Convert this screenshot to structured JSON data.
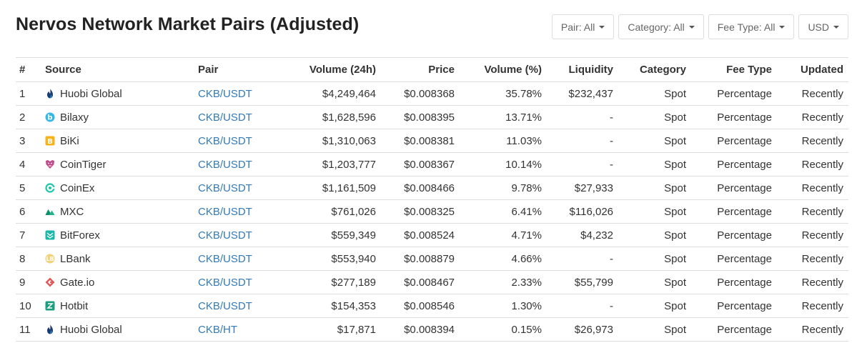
{
  "page": {
    "title": "Nervos Network Market Pairs (Adjusted)"
  },
  "filters": [
    {
      "label": "Pair: All"
    },
    {
      "label": "Category: All"
    },
    {
      "label": "Fee Type: All"
    },
    {
      "label": "USD"
    }
  ],
  "table": {
    "headers": {
      "rank": "#",
      "source": "Source",
      "pair": "Pair",
      "volume": "Volume (24h)",
      "price": "Price",
      "volume_pct": "Volume (%)",
      "liquidity": "Liquidity",
      "category": "Category",
      "fee_type": "Fee Type",
      "updated": "Updated"
    },
    "rows": [
      {
        "rank": "1",
        "source": "Huobi Global",
        "icon": "huobi-icon",
        "pair": "CKB/USDT",
        "volume": "$4,249,464",
        "price": "$0.008368",
        "volume_pct": "35.78%",
        "liquidity": "$232,437",
        "category": "Spot",
        "fee_type": "Percentage",
        "updated": "Recently"
      },
      {
        "rank": "2",
        "source": "Bilaxy",
        "icon": "bilaxy-icon",
        "pair": "CKB/USDT",
        "volume": "$1,628,596",
        "price": "$0.008395",
        "volume_pct": "13.71%",
        "liquidity": "-",
        "category": "Spot",
        "fee_type": "Percentage",
        "updated": "Recently"
      },
      {
        "rank": "3",
        "source": "BiKi",
        "icon": "biki-icon",
        "pair": "CKB/USDT",
        "volume": "$1,310,063",
        "price": "$0.008381",
        "volume_pct": "11.03%",
        "liquidity": "-",
        "category": "Spot",
        "fee_type": "Percentage",
        "updated": "Recently"
      },
      {
        "rank": "4",
        "source": "CoinTiger",
        "icon": "cointiger-icon",
        "pair": "CKB/USDT",
        "volume": "$1,203,777",
        "price": "$0.008367",
        "volume_pct": "10.14%",
        "liquidity": "-",
        "category": "Spot",
        "fee_type": "Percentage",
        "updated": "Recently"
      },
      {
        "rank": "5",
        "source": "CoinEx",
        "icon": "coinex-icon",
        "pair": "CKB/USDT",
        "volume": "$1,161,509",
        "price": "$0.008466",
        "volume_pct": "9.78%",
        "liquidity": "$27,933",
        "category": "Spot",
        "fee_type": "Percentage",
        "updated": "Recently"
      },
      {
        "rank": "6",
        "source": "MXC",
        "icon": "mxc-icon",
        "pair": "CKB/USDT",
        "volume": "$761,026",
        "price": "$0.008325",
        "volume_pct": "6.41%",
        "liquidity": "$116,026",
        "category": "Spot",
        "fee_type": "Percentage",
        "updated": "Recently"
      },
      {
        "rank": "7",
        "source": "BitForex",
        "icon": "bitforex-icon",
        "pair": "CKB/USDT",
        "volume": "$559,349",
        "price": "$0.008524",
        "volume_pct": "4.71%",
        "liquidity": "$4,232",
        "category": "Spot",
        "fee_type": "Percentage",
        "updated": "Recently"
      },
      {
        "rank": "8",
        "source": "LBank",
        "icon": "lbank-icon",
        "pair": "CKB/USDT",
        "volume": "$553,940",
        "price": "$0.008879",
        "volume_pct": "4.66%",
        "liquidity": "-",
        "category": "Spot",
        "fee_type": "Percentage",
        "updated": "Recently"
      },
      {
        "rank": "9",
        "source": "Gate.io",
        "icon": "gateio-icon",
        "pair": "CKB/USDT",
        "volume": "$277,189",
        "price": "$0.008467",
        "volume_pct": "2.33%",
        "liquidity": "$55,799",
        "category": "Spot",
        "fee_type": "Percentage",
        "updated": "Recently"
      },
      {
        "rank": "10",
        "source": "Hotbit",
        "icon": "hotbit-icon",
        "pair": "CKB/USDT",
        "volume": "$154,353",
        "price": "$0.008546",
        "volume_pct": "1.30%",
        "liquidity": "-",
        "category": "Spot",
        "fee_type": "Percentage",
        "updated": "Recently"
      },
      {
        "rank": "11",
        "source": "Huobi Global",
        "icon": "huobi-icon",
        "pair": "CKB/HT",
        "volume": "$17,871",
        "price": "$0.008394",
        "volume_pct": "0.15%",
        "liquidity": "$26,973",
        "category": "Spot",
        "fee_type": "Percentage",
        "updated": "Recently"
      }
    ]
  },
  "colors": {
    "link": "#337ab7",
    "border": "#dddddd",
    "title": "#222222",
    "text": "#333333"
  }
}
